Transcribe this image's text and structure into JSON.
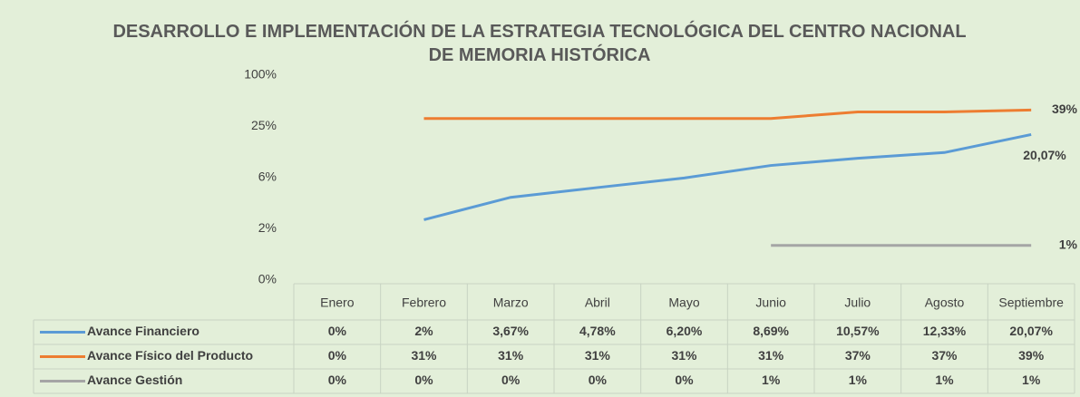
{
  "chart_data": {
    "type": "line",
    "title": "DESARROLLO E IMPLEMENTACIÓN DE LA ESTRATEGIA TECNOLÓGICA DEL CENTRO NACIONAL DE MEMORIA HISTÓRICA",
    "categories": [
      "Enero",
      "Febrero",
      "Marzo",
      "Abril",
      "Mayo",
      "Junio",
      "Julio",
      "Agosto",
      "Septiembre"
    ],
    "series": [
      {
        "name": "Avance Financiero",
        "color": "#5b9bd5",
        "values": [
          0,
          2,
          3.67,
          4.78,
          6.2,
          8.69,
          10.57,
          12.33,
          20.07
        ],
        "value_labels": [
          "0%",
          "2%",
          "3,67%",
          "4,78%",
          "6,20%",
          "8,69%",
          "10,57%",
          "12,33%",
          "20,07%"
        ]
      },
      {
        "name": "Avance Físico del Producto",
        "color": "#ed7d31",
        "values": [
          0,
          31,
          31,
          31,
          31,
          31,
          37,
          37,
          39
        ],
        "value_labels": [
          "0%",
          "31%",
          "31%",
          "31%",
          "31%",
          "31%",
          "37%",
          "37%",
          "39%"
        ]
      },
      {
        "name": "Avance Gestión",
        "color": "#a5a5a5",
        "values": [
          0,
          0,
          0,
          0,
          0,
          1,
          1,
          1,
          1
        ],
        "value_labels": [
          "0%",
          "0%",
          "0%",
          "0%",
          "0%",
          "1%",
          "1%",
          "1%",
          "1%"
        ]
      }
    ],
    "log_scale": true,
    "ylim": [
      0.390625,
      100
    ],
    "yticks": [
      {
        "value": 0.390625,
        "label": "0%"
      },
      {
        "value": 1.5625,
        "label": "2%"
      },
      {
        "value": 6.25,
        "label": "6%"
      },
      {
        "value": 25,
        "label": "25%"
      },
      {
        "value": 100,
        "label": "100%"
      }
    ]
  }
}
